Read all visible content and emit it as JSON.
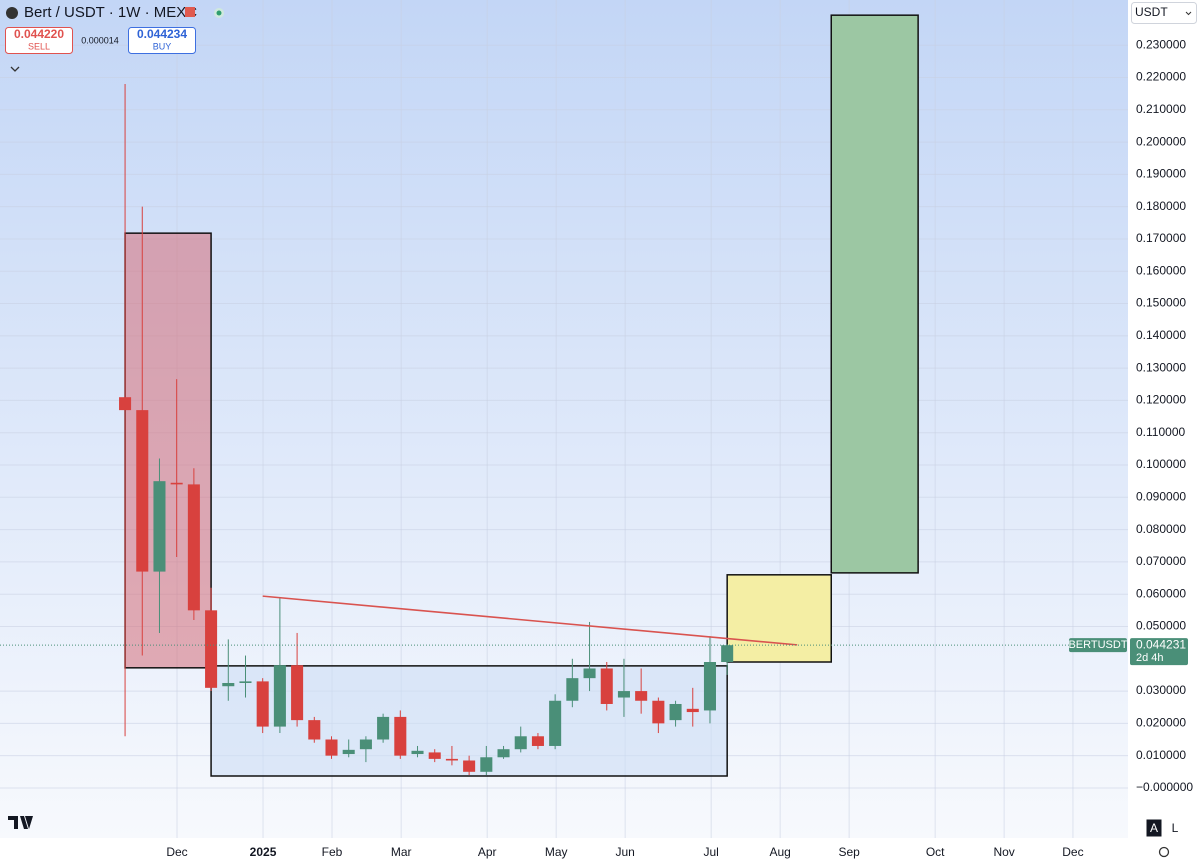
{
  "header": {
    "title": "Bert / USDT · 1W · MEXC",
    "sell_price": "0.044220",
    "sell_label": "SELL",
    "spread": "0.000014",
    "buy_price": "0.044234",
    "buy_label": "BUY",
    "currency": "USDT",
    "scale_auto": "A",
    "scale_log": "L"
  },
  "chart_data": {
    "type": "candlestick",
    "symbol_label": "BERTUSDT",
    "last_price": 0.044231,
    "countdown": "2d 4h",
    "up_color": "#4a8f78",
    "down_color": "#d8413e",
    "grid": true,
    "categories": [
      null,
      null,
      null,
      null,
      null,
      null,
      null,
      null,
      null,
      null,
      null,
      null,
      null,
      null,
      null,
      null,
      null,
      null,
      null,
      null,
      null,
      null,
      null,
      null,
      null,
      null,
      null,
      null,
      null,
      null,
      null,
      null,
      null,
      null,
      null,
      null
    ],
    "open": [
      0.121,
      0.117,
      0.067,
      0.0945,
      0.094,
      0.055,
      0.0315,
      0.0325,
      0.033,
      0.019,
      0.038,
      0.021,
      0.015,
      0.0105,
      0.012,
      0.015,
      0.022,
      0.0105,
      0.011,
      0.009,
      0.0085,
      0.005,
      0.0095,
      0.012,
      0.016,
      0.013,
      0.027,
      0.034,
      0.037,
      0.028,
      0.03,
      0.027,
      0.021,
      0.0245,
      0.024,
      0.039
    ],
    "high": [
      0.218,
      0.18,
      0.102,
      0.1266,
      0.099,
      0.062,
      0.046,
      0.041,
      0.034,
      0.059,
      0.048,
      0.022,
      0.016,
      0.015,
      0.016,
      0.023,
      0.024,
      0.013,
      0.012,
      0.013,
      0.01,
      0.013,
      0.013,
      0.019,
      0.017,
      0.029,
      0.04,
      0.0514,
      0.039,
      0.04,
      0.037,
      0.028,
      0.027,
      0.031,
      0.047,
      0.0445
    ],
    "low": [
      0.016,
      0.041,
      0.048,
      0.0715,
      0.052,
      0.03,
      0.027,
      0.028,
      0.017,
      0.017,
      0.019,
      0.014,
      0.009,
      0.0095,
      0.008,
      0.014,
      0.009,
      0.0095,
      0.008,
      0.007,
      0.004,
      0.004,
      0.009,
      0.011,
      0.012,
      0.012,
      0.025,
      0.03,
      0.024,
      0.022,
      0.023,
      0.017,
      0.019,
      0.019,
      0.02,
      0.035
    ],
    "close": [
      0.117,
      0.067,
      0.095,
      0.094,
      0.055,
      0.031,
      0.0325,
      0.033,
      0.019,
      0.038,
      0.021,
      0.015,
      0.01,
      0.0118,
      0.015,
      0.022,
      0.01,
      0.0115,
      0.009,
      0.0085,
      0.005,
      0.0095,
      0.012,
      0.016,
      0.013,
      0.027,
      0.034,
      0.037,
      0.026,
      0.03,
      0.027,
      0.02,
      0.026,
      0.0235,
      0.039,
      0.0442
    ],
    "rectangles": [
      {
        "x": [
          0,
          5
        ],
        "y": [
          0.0372,
          0.1718
        ],
        "color": "rgba(214,110,120,0.55)"
      },
      {
        "x": [
          5,
          35
        ],
        "y": [
          0.0037,
          0.0378
        ],
        "color": "rgba(205,222,245,0.6)"
      },
      {
        "x": [
          35,
          41.05
        ],
        "y": [
          0.039,
          0.066
        ],
        "color": "#f4eea4"
      },
      {
        "x": [
          41.05,
          46.1
        ],
        "y": [
          0.0666,
          0.2393
        ],
        "color": "#9cc7a3"
      }
    ],
    "trendline": {
      "x": [
        8,
        39.07
      ],
      "y": [
        0.0594,
        0.0443
      ],
      "color": "#d9534f"
    },
    "xlim": [
      -7.27,
      58.3
    ],
    "ylim": [
      -0.0155,
      0.244
    ],
    "xticks": [
      {
        "value": 3.02,
        "label": "Dec"
      },
      {
        "value": 8.02,
        "label": "2025"
      },
      {
        "value": 12.03,
        "label": "Feb"
      },
      {
        "value": 16.05,
        "label": "Mar"
      },
      {
        "value": 21.05,
        "label": "Apr"
      },
      {
        "value": 25.06,
        "label": "May"
      },
      {
        "value": 29.07,
        "label": "Jun"
      },
      {
        "value": 34.07,
        "label": "Jul"
      },
      {
        "value": 38.08,
        "label": "Aug"
      },
      {
        "value": 42.09,
        "label": "Sep"
      },
      {
        "value": 47.09,
        "label": "Oct"
      },
      {
        "value": 51.1,
        "label": "Nov"
      },
      {
        "value": 55.1,
        "label": "Dec"
      }
    ],
    "yticks": [
      {
        "value": 0,
        "label": "−0.000000"
      },
      {
        "value": 0.01,
        "label": "0.010000"
      },
      {
        "value": 0.02,
        "label": "0.020000"
      },
      {
        "value": 0.03,
        "label": "0.030000"
      },
      {
        "value": 0.05,
        "label": "0.050000"
      },
      {
        "value": 0.06,
        "label": "0.060000"
      },
      {
        "value": 0.07,
        "label": "0.070000"
      },
      {
        "value": 0.08,
        "label": "0.080000"
      },
      {
        "value": 0.09,
        "label": "0.090000"
      },
      {
        "value": 0.1,
        "label": "0.100000"
      },
      {
        "value": 0.11,
        "label": "0.110000"
      },
      {
        "value": 0.12,
        "label": "0.120000"
      },
      {
        "value": 0.13,
        "label": "0.130000"
      },
      {
        "value": 0.14,
        "label": "0.140000"
      },
      {
        "value": 0.15,
        "label": "0.150000"
      },
      {
        "value": 0.16,
        "label": "0.160000"
      },
      {
        "value": 0.17,
        "label": "0.170000"
      },
      {
        "value": 0.18,
        "label": "0.180000"
      },
      {
        "value": 0.19,
        "label": "0.190000"
      },
      {
        "value": 0.2,
        "label": "0.200000"
      },
      {
        "value": 0.21,
        "label": "0.210000"
      },
      {
        "value": 0.22,
        "label": "0.220000"
      },
      {
        "value": 0.23,
        "label": "0.230000"
      }
    ]
  }
}
